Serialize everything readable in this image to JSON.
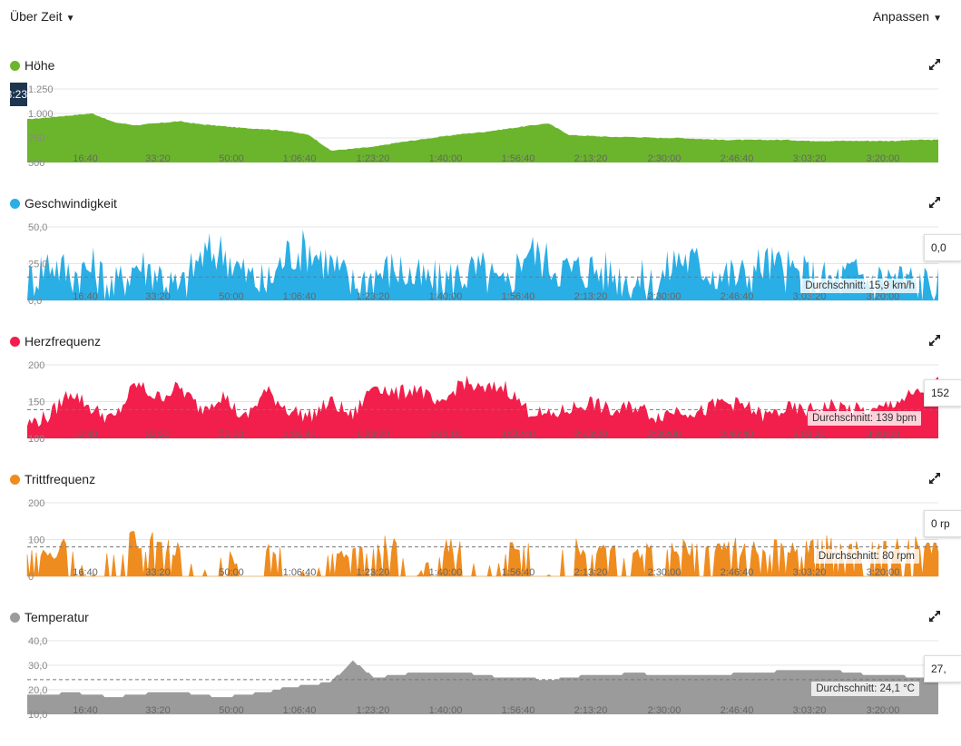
{
  "toolbar": {
    "view_label": "Über Zeit",
    "customize_label": "Anpassen"
  },
  "hover_time": "3:23",
  "x_axis": {
    "ticks": [
      "16:40",
      "33:20",
      "50:00",
      "1:06:40",
      "1:23:20",
      "1:40:00",
      "1:56:40",
      "2:13:20",
      "2:30:00",
      "2:46:40",
      "3:03:20",
      "3:20:00"
    ]
  },
  "panels": [
    {
      "id": "hoehe",
      "title": "Höhe",
      "color": "#6bb52c",
      "expand_icon": "expand-arrows-icon",
      "y_ticks": [
        "1.250",
        "1.000",
        "750",
        "500"
      ],
      "average_label": "",
      "hover_value": ""
    },
    {
      "id": "geschwindigkeit",
      "title": "Geschwindigkeit",
      "color": "#2aaee6",
      "expand_icon": "expand-arrows-icon",
      "y_ticks": [
        "50,0",
        "25,0",
        "0,0"
      ],
      "average_label": "Durchschnitt: 15,9 km/h",
      "hover_value": "0,0"
    },
    {
      "id": "herzfrequenz",
      "title": "Herzfrequenz",
      "color": "#f21e4b",
      "expand_icon": "expand-arrows-icon",
      "y_ticks": [
        "200",
        "150",
        "100"
      ],
      "average_label": "Durchschnitt: 139 bpm",
      "hover_value": "152"
    },
    {
      "id": "trittfrequenz",
      "title": "Trittfrequenz",
      "color": "#ef8c1f",
      "expand_icon": "expand-arrows-icon",
      "y_ticks": [
        "200",
        "100",
        "0"
      ],
      "average_label": "Durchschnitt: 80 rpm",
      "hover_value": "0 rp"
    },
    {
      "id": "temperatur",
      "title": "Temperatur",
      "color": "#9b9b9b",
      "expand_icon": "expand-arrows-icon",
      "y_ticks": [
        "40,0",
        "30,0",
        "20,0",
        "10,0"
      ],
      "average_label": "Durchschnitt: 24,1 °C",
      "hover_value": "27,"
    }
  ],
  "chart_data": [
    {
      "type": "area",
      "title": "Höhe",
      "ylim": [
        500,
        1250
      ],
      "x_label_ticks": [
        "16:40",
        "33:20",
        "50:00",
        "1:06:40",
        "1:23:20",
        "1:40:00",
        "1:56:40",
        "2:13:20",
        "2:30:00",
        "2:46:40",
        "3:03:20",
        "3:20:00"
      ],
      "x_minutes": [
        0,
        5,
        10,
        15,
        20,
        25,
        30,
        35,
        40,
        45,
        50,
        55,
        60,
        65,
        70,
        75,
        80,
        85,
        90,
        95,
        100,
        105,
        110,
        115,
        120,
        125,
        130,
        135,
        140,
        145,
        150,
        155,
        160,
        165,
        170,
        175,
        180,
        185,
        190,
        195,
        200,
        205,
        210
      ],
      "values": [
        940,
        960,
        980,
        1000,
        910,
        880,
        900,
        920,
        890,
        870,
        850,
        840,
        820,
        780,
        620,
        640,
        660,
        700,
        730,
        760,
        790,
        810,
        840,
        870,
        900,
        780,
        770,
        760,
        760,
        750,
        750,
        740,
        730,
        730,
        730,
        730,
        720,
        720,
        720,
        720,
        720,
        730,
        730
      ]
    },
    {
      "type": "area",
      "title": "Geschwindigkeit",
      "ylim": [
        0,
        50
      ],
      "average": 15.9,
      "x_minutes": [
        0,
        5,
        10,
        15,
        20,
        25,
        30,
        35,
        40,
        45,
        50,
        55,
        60,
        65,
        70,
        75,
        80,
        85,
        90,
        95,
        100,
        105,
        110,
        115,
        120,
        125,
        130,
        135,
        140,
        145,
        150,
        155,
        160,
        165,
        170,
        175,
        180,
        185,
        190,
        195,
        200,
        205,
        210
      ],
      "values": [
        12,
        27,
        18,
        22,
        8,
        25,
        20,
        6,
        30,
        34,
        18,
        10,
        32,
        35,
        25,
        10,
        18,
        22,
        14,
        12,
        18,
        20,
        6,
        36,
        26,
        20,
        22,
        18,
        14,
        10,
        30,
        24,
        18,
        16,
        26,
        20,
        16,
        12,
        18,
        14,
        16,
        12,
        10
      ]
    },
    {
      "type": "area",
      "title": "Herzfrequenz",
      "ylim": [
        100,
        200
      ],
      "average": 139,
      "x_minutes": [
        0,
        5,
        10,
        15,
        20,
        25,
        30,
        35,
        40,
        45,
        50,
        55,
        60,
        65,
        70,
        75,
        80,
        85,
        90,
        95,
        100,
        105,
        110,
        115,
        120,
        125,
        130,
        135,
        140,
        145,
        150,
        155,
        160,
        165,
        170,
        175,
        180,
        185,
        190,
        195,
        200,
        205,
        210
      ],
      "values": [
        120,
        130,
        165,
        140,
        125,
        175,
        155,
        170,
        140,
        160,
        125,
        165,
        140,
        130,
        150,
        130,
        175,
        160,
        170,
        140,
        178,
        165,
        172,
        140,
        130,
        140,
        150,
        135,
        145,
        130,
        140,
        135,
        150,
        145,
        130,
        140,
        138,
        145,
        140,
        135,
        150,
        160,
        175
      ]
    },
    {
      "type": "area",
      "title": "Trittfrequenz",
      "ylim": [
        0,
        200
      ],
      "average": 80,
      "x_minutes": [
        0,
        5,
        10,
        15,
        20,
        25,
        30,
        35,
        40,
        45,
        50,
        55,
        60,
        65,
        70,
        75,
        80,
        85,
        90,
        95,
        100,
        105,
        110,
        115,
        120,
        125,
        130,
        135,
        140,
        145,
        150,
        155,
        160,
        165,
        170,
        175,
        180,
        185,
        190,
        195,
        200,
        205,
        210
      ],
      "values": [
        60,
        70,
        95,
        0,
        85,
        110,
        100,
        80,
        0,
        90,
        0,
        85,
        70,
        0,
        60,
        90,
        95,
        90,
        0,
        85,
        90,
        0,
        80,
        85,
        0,
        90,
        85,
        80,
        70,
        90,
        85,
        90,
        95,
        85,
        80,
        90,
        85,
        95,
        85,
        80,
        90,
        95,
        85
      ]
    },
    {
      "type": "area",
      "title": "Temperatur",
      "ylim": [
        10,
        40
      ],
      "average": 24.1,
      "x_minutes": [
        0,
        5,
        10,
        15,
        20,
        25,
        30,
        35,
        40,
        45,
        50,
        55,
        60,
        65,
        70,
        75,
        80,
        85,
        90,
        95,
        100,
        105,
        110,
        115,
        120,
        125,
        130,
        135,
        140,
        145,
        150,
        155,
        160,
        165,
        170,
        175,
        180,
        185,
        190,
        195,
        200,
        205,
        210
      ],
      "values": [
        18,
        18,
        19,
        18,
        17,
        18,
        19,
        19,
        18,
        17,
        18,
        19,
        21,
        22,
        23,
        32,
        25,
        26,
        27,
        27,
        27,
        26,
        25,
        25,
        24,
        25,
        26,
        26,
        27,
        26,
        26,
        26,
        26,
        27,
        27,
        28,
        28,
        28,
        27,
        26,
        26,
        25,
        24
      ]
    }
  ]
}
